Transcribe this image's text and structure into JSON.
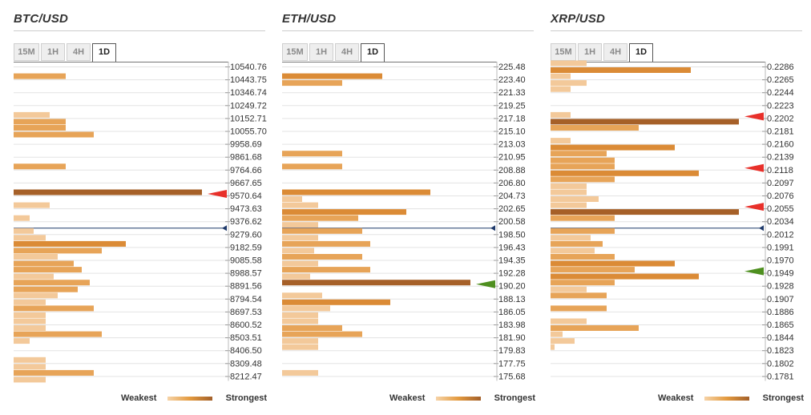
{
  "colors": {
    "weak": "#f3c99a",
    "medium": "#e7a458",
    "strong": "#db8b36",
    "strongest": "#a66028",
    "price_line": "#1f3a6b",
    "arrow_red": "#e8302a",
    "arrow_green": "#4e8f1f"
  },
  "legend": {
    "weakest": "Weakest",
    "strongest": "Strongest"
  },
  "panels": [
    {
      "title": "BTC/USD",
      "tabs": [
        "15M",
        "1H",
        "4H",
        "1D"
      ],
      "active_tab": "1D",
      "chart_data": {
        "type": "bar",
        "orientation": "horizontal",
        "title": "BTC/USD",
        "levels": [
          "10540.76",
          "10443.75",
          "10346.74",
          "10249.72",
          "10152.71",
          "10055.70",
          "9958.69",
          "9861.68",
          "9764.66",
          "9667.65",
          "9570.64",
          "9473.63",
          "9376.62",
          "9279.60",
          "9182.59",
          "9085.58",
          "8988.57",
          "8891.56",
          "8794.54",
          "8697.53",
          "8600.52",
          "8503.51",
          "8406.50",
          "8309.48",
          "8212.47"
        ],
        "bars": [
          [],
          [
            13
          ],
          [],
          [],
          [
            9,
            13
          ],
          [
            13,
            20
          ],
          [],
          [],
          [
            13
          ],
          [],
          [
            47
          ],
          [
            9
          ],
          [
            4
          ],
          [
            5,
            8
          ],
          [
            28,
            22
          ],
          [
            11,
            15
          ],
          [
            17,
            10
          ],
          [
            19,
            16
          ],
          [
            11,
            8
          ],
          [
            20,
            8
          ],
          [
            8,
            8
          ],
          [
            22,
            4
          ],
          [],
          [
            8,
            8
          ],
          [
            20,
            8
          ]
        ],
        "current_price_after_index": 12,
        "markers": [
          {
            "index": 10,
            "color": "red"
          }
        ]
      }
    },
    {
      "title": "ETH/USD",
      "tabs": [
        "15M",
        "1H",
        "4H",
        "1D"
      ],
      "active_tab": "1D",
      "chart_data": {
        "type": "bar",
        "orientation": "horizontal",
        "title": "ETH/USD",
        "levels": [
          "225.48",
          "223.40",
          "221.33",
          "219.25",
          "217.18",
          "215.10",
          "213.03",
          "210.95",
          "208.88",
          "206.80",
          "204.73",
          "202.65",
          "200.58",
          "198.50",
          "196.43",
          "194.35",
          "192.28",
          "190.20",
          "188.13",
          "186.05",
          "183.98",
          "181.90",
          "179.83",
          "177.75",
          "175.68"
        ],
        "bars": [
          [],
          [
            25,
            15
          ],
          [],
          [],
          [],
          [],
          [],
          [
            15
          ],
          [
            15
          ],
          [],
          [
            37,
            5
          ],
          [
            9,
            31
          ],
          [
            19,
            9
          ],
          [
            20,
            9
          ],
          [
            22,
            8
          ],
          [
            20,
            9
          ],
          [
            22,
            7
          ],
          [
            47
          ],
          [
            10,
            27
          ],
          [
            12,
            9
          ],
          [
            9,
            15
          ],
          [
            20,
            9
          ],
          [
            9
          ],
          [],
          [
            9
          ]
        ],
        "current_price_after_index": 12,
        "markers": [
          {
            "index": 17,
            "color": "green"
          }
        ]
      }
    },
    {
      "title": "XRP/USD",
      "tabs": [
        "15M",
        "1H",
        "4H",
        "1D"
      ],
      "active_tab": "1D",
      "chart_data": {
        "type": "bar",
        "orientation": "horizontal",
        "title": "XRP/USD",
        "levels": [
          "0.2286",
          "0.2265",
          "0.2244",
          "0.2223",
          "0.2202",
          "0.2181",
          "0.2160",
          "0.2139",
          "0.2118",
          "0.2097",
          "0.2076",
          "0.2055",
          "0.2034",
          "0.2012",
          "0.1991",
          "0.1970",
          "0.1949",
          "0.1928",
          "0.1907",
          "0.1886",
          "0.1865",
          "0.1844",
          "0.1823",
          "0.1802",
          "0.1781"
        ],
        "bars": [
          [
            9,
            35
          ],
          [
            5,
            9
          ],
          [
            5
          ],
          [],
          [
            5,
            47
          ],
          [
            22
          ],
          [
            5,
            31
          ],
          [
            14,
            16
          ],
          [
            16,
            37
          ],
          [
            16,
            9
          ],
          [
            9,
            12
          ],
          [
            9,
            47
          ],
          [
            16
          ],
          [
            16,
            10
          ],
          [
            13,
            11
          ],
          [
            16,
            31
          ],
          [
            21,
            37
          ],
          [
            16,
            9
          ],
          [
            14
          ],
          [
            14
          ],
          [
            9,
            22
          ],
          [
            3,
            6
          ],
          [
            1
          ],
          [],
          []
        ],
        "current_price_after_index": 12,
        "markers": [
          {
            "index": 4,
            "color": "red"
          },
          {
            "index": 8,
            "color": "red"
          },
          {
            "index": 11,
            "color": "red"
          },
          {
            "index": 16,
            "color": "green"
          }
        ]
      }
    }
  ]
}
